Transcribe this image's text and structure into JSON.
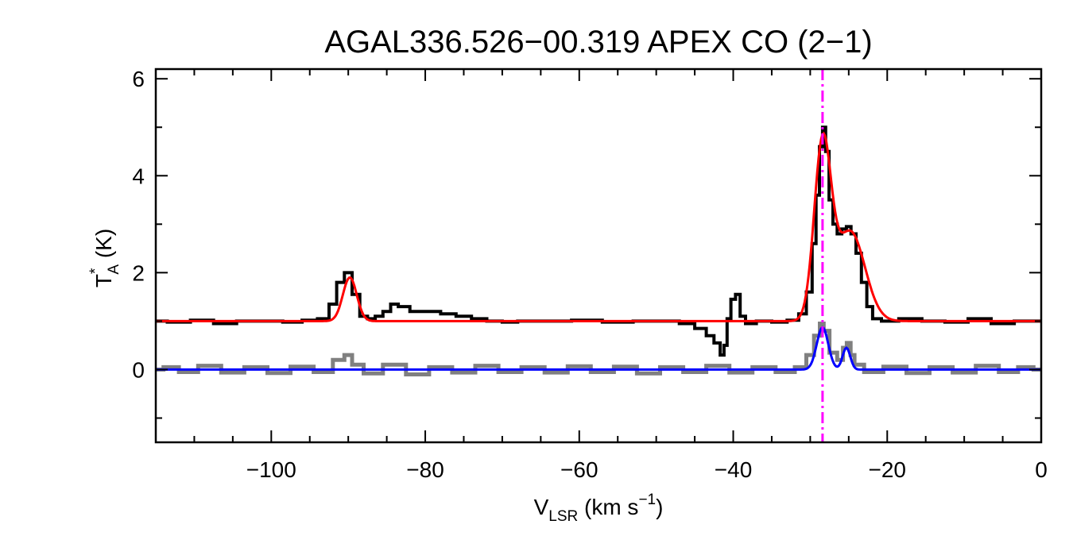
{
  "chart_data": {
    "type": "line",
    "title": "AGAL336.526−00.319  APEX CO (2−1)",
    "xlabel": {
      "main": "V",
      "sub": "LSR",
      "unit_open": " (km s",
      "unit_sup": "−1",
      "unit_close": ")"
    },
    "ylabel": {
      "main": "T",
      "sup": "*",
      "sub": "A",
      "unit": " (K)"
    },
    "xlim": [
      -115,
      0
    ],
    "ylim": [
      -1.5,
      6.2
    ],
    "xticks": [
      {
        "value": -100,
        "label": "−100"
      },
      {
        "value": -80,
        "label": "−80"
      },
      {
        "value": -60,
        "label": "−60"
      },
      {
        "value": -40,
        "label": "−40"
      },
      {
        "value": -20,
        "label": "−20"
      },
      {
        "value": 0,
        "label": "0"
      }
    ],
    "yticks": [
      {
        "value": 0,
        "label": "0"
      },
      {
        "value": 2,
        "label": "2"
      },
      {
        "value": 4,
        "label": "4"
      },
      {
        "value": 6,
        "label": "6"
      }
    ],
    "x_minor_step": 5,
    "y_minor_step": 1,
    "grid": false,
    "reference_line": {
      "x": -28.4,
      "color": "#ff00ff",
      "style": "dash-dot"
    },
    "series": [
      {
        "role": "spectrum",
        "color": "#000000",
        "style": "step",
        "points": [
          [
            -115,
            1.0
          ],
          [
            -112,
            0.98
          ],
          [
            -109,
            1.02
          ],
          [
            -106,
            0.95
          ],
          [
            -103,
            1.0
          ],
          [
            -100,
            1.0
          ],
          [
            -97,
            0.98
          ],
          [
            -95,
            1.02
          ],
          [
            -93,
            1.05
          ],
          [
            -92,
            1.35
          ],
          [
            -91,
            1.8
          ],
          [
            -90,
            2.0
          ],
          [
            -89,
            1.55
          ],
          [
            -88,
            1.1
          ],
          [
            -87,
            1.05
          ],
          [
            -86,
            1.1
          ],
          [
            -85,
            1.2
          ],
          [
            -84,
            1.35
          ],
          [
            -83,
            1.3
          ],
          [
            -81,
            1.2
          ],
          [
            -79,
            1.2
          ],
          [
            -77,
            1.15
          ],
          [
            -75,
            1.1
          ],
          [
            -73,
            1.05
          ],
          [
            -71,
            1.0
          ],
          [
            -69,
            0.98
          ],
          [
            -67,
            1.0
          ],
          [
            -63,
            1.0
          ],
          [
            -59,
            1.02
          ],
          [
            -55,
            0.98
          ],
          [
            -51,
            1.0
          ],
          [
            -48,
            1.0
          ],
          [
            -46,
            0.95
          ],
          [
            -44,
            0.85
          ],
          [
            -43,
            0.7
          ],
          [
            -42,
            0.55
          ],
          [
            -41.4,
            0.3
          ],
          [
            -41,
            0.5
          ],
          [
            -40.6,
            1.05
          ],
          [
            -40,
            1.45
          ],
          [
            -39.4,
            1.55
          ],
          [
            -38.8,
            1.1
          ],
          [
            -38,
            0.95
          ],
          [
            -36,
            1.0
          ],
          [
            -34,
            0.98
          ],
          [
            -32,
            1.02
          ],
          [
            -31,
            1.15
          ],
          [
            -30,
            1.6
          ],
          [
            -29.5,
            2.6
          ],
          [
            -29,
            3.6
          ],
          [
            -28.6,
            4.6
          ],
          [
            -28.2,
            5.0
          ],
          [
            -27.8,
            4.5
          ],
          [
            -27.3,
            3.5
          ],
          [
            -26.8,
            3.0
          ],
          [
            -26.2,
            2.8
          ],
          [
            -25.6,
            2.9
          ],
          [
            -25,
            2.95
          ],
          [
            -24.4,
            2.8
          ],
          [
            -23.7,
            2.4
          ],
          [
            -23,
            1.8
          ],
          [
            -22.3,
            1.3
          ],
          [
            -21.5,
            1.05
          ],
          [
            -20,
            1.0
          ],
          [
            -17,
            1.05
          ],
          [
            -14,
            1.0
          ],
          [
            -11,
            0.98
          ],
          [
            -8,
            1.05
          ],
          [
            -5,
            0.95
          ],
          [
            -2,
            1.0
          ],
          [
            0,
            1.0
          ]
        ]
      },
      {
        "role": "residual",
        "color": "#808080",
        "style": "step",
        "points": [
          [
            -115,
            0.0
          ],
          [
            -113,
            0.05
          ],
          [
            -111,
            -0.05
          ],
          [
            -108,
            0.08
          ],
          [
            -105,
            -0.06
          ],
          [
            -102,
            0.05
          ],
          [
            -99,
            -0.07
          ],
          [
            -96,
            0.06
          ],
          [
            -93,
            -0.05
          ],
          [
            -91,
            0.2
          ],
          [
            -90,
            0.3
          ],
          [
            -89,
            0.1
          ],
          [
            -87,
            -0.08
          ],
          [
            -84,
            0.1
          ],
          [
            -81,
            -0.1
          ],
          [
            -78,
            0.05
          ],
          [
            -75,
            -0.06
          ],
          [
            -72,
            0.08
          ],
          [
            -69,
            -0.05
          ],
          [
            -66,
            0.05
          ],
          [
            -63,
            -0.06
          ],
          [
            -60,
            0.07
          ],
          [
            -57,
            -0.05
          ],
          [
            -54,
            0.06
          ],
          [
            -51,
            -0.08
          ],
          [
            -48,
            0.05
          ],
          [
            -45,
            -0.05
          ],
          [
            -42,
            0.08
          ],
          [
            -39,
            -0.06
          ],
          [
            -36,
            0.05
          ],
          [
            -33,
            -0.05
          ],
          [
            -31,
            0.05
          ],
          [
            -30,
            0.3
          ],
          [
            -29,
            0.7
          ],
          [
            -28.5,
            0.95
          ],
          [
            -28,
            0.8
          ],
          [
            -27,
            0.35
          ],
          [
            -26,
            0.2
          ],
          [
            -25.5,
            0.45
          ],
          [
            -25,
            0.55
          ],
          [
            -24.5,
            0.3
          ],
          [
            -24,
            0.1
          ],
          [
            -22,
            -0.05
          ],
          [
            -19,
            0.06
          ],
          [
            -16,
            -0.07
          ],
          [
            -13,
            0.05
          ],
          [
            -10,
            -0.06
          ],
          [
            -7,
            0.08
          ],
          [
            -4,
            -0.05
          ],
          [
            -2,
            0.05
          ],
          [
            0,
            0.0
          ]
        ]
      },
      {
        "role": "fit",
        "color": "#ff0000",
        "style": "gaussian",
        "baseline": 1.0,
        "components": [
          {
            "amplitude": 0.9,
            "center": -89.8,
            "sigma": 0.9
          },
          {
            "amplitude": 3.55,
            "center": -28.4,
            "sigma": 1.1
          },
          {
            "amplitude": 1.85,
            "center": -24.8,
            "sigma": 1.9
          }
        ]
      },
      {
        "role": "fit",
        "color": "#0000ff",
        "style": "gaussian",
        "baseline": 0.0,
        "components": [
          {
            "amplitude": 0.87,
            "center": -28.4,
            "sigma": 0.75
          },
          {
            "amplitude": 0.45,
            "center": -25.3,
            "sigma": 0.5
          }
        ]
      }
    ]
  }
}
